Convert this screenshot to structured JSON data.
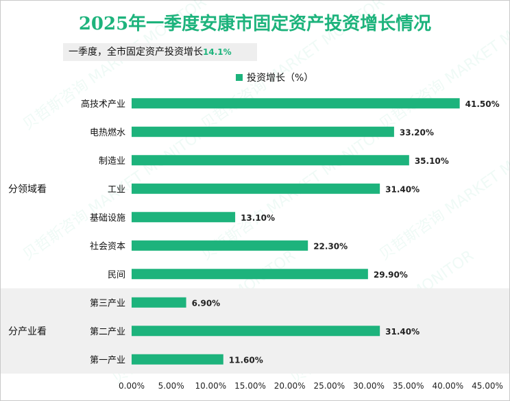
{
  "chart_data": {
    "type": "bar",
    "title": "2025年一季度安康市固定资产投资增长情况",
    "summary_label": "一季度，全市固定资产投资增长",
    "summary_value": "14.1%",
    "legend": "投资增长（%）",
    "groups": [
      {
        "label": "分领域看",
        "categories": [
          "高技术产业",
          "电热燃水",
          "制造业",
          "工业",
          "基础设施",
          "社会资本",
          "民间"
        ]
      },
      {
        "label": "分产业看",
        "categories": [
          "第三产业",
          "第二产业",
          "第一产业"
        ]
      }
    ],
    "categories": [
      "高技术产业",
      "电热燃水",
      "制造业",
      "工业",
      "基础设施",
      "社会资本",
      "民间",
      "第三产业",
      "第二产业",
      "第一产业"
    ],
    "series": [
      {
        "name": "投资增长（%）",
        "values": [
          41.5,
          33.2,
          35.1,
          31.4,
          13.1,
          22.3,
          29.9,
          6.9,
          31.4,
          11.6
        ]
      }
    ],
    "data_labels": [
      "41.50%",
      "33.20%",
      "35.10%",
      "31.40%",
      "13.10%",
      "22.30%",
      "29.90%",
      "6.90%",
      "31.40%",
      "11.60%"
    ],
    "x_ticks": [
      "0.00%",
      "5.00%",
      "10.00%",
      "15.00%",
      "20.00%",
      "25.00%",
      "30.00%",
      "35.00%",
      "40.00%",
      "45.00%"
    ],
    "xlim": [
      0,
      45
    ],
    "watermark": "贝哲斯咨询 MARKET MONITOR",
    "colors": {
      "bar": "#1db37c",
      "title": "#1db37c",
      "band": "#f0f0f0"
    }
  }
}
